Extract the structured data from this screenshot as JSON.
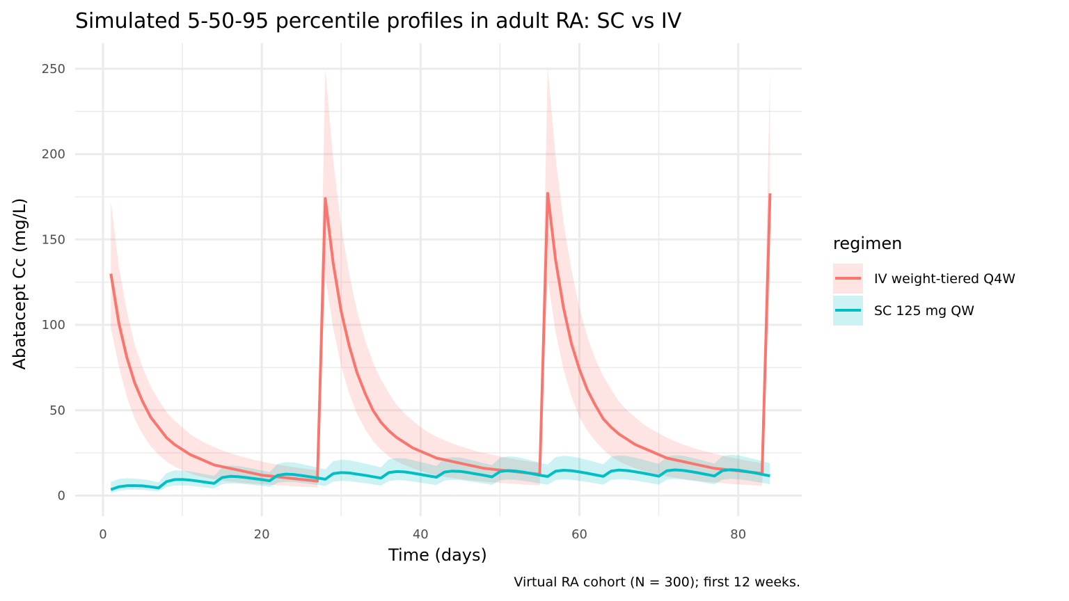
{
  "chart_data": {
    "type": "line",
    "title": "Simulated 5-50-95 percentile profiles in adult RA: SC vs IV",
    "xlabel": "Time (days)",
    "ylabel": "Abatacept Cc (mg/L)",
    "caption": "Virtual RA cohort (N = 300); first 12 weeks.",
    "xlim": [
      -3.5,
      88
    ],
    "ylim": [
      -12,
      265
    ],
    "x_ticks": [
      0,
      20,
      40,
      60,
      80
    ],
    "x_tick_labels": [
      "0",
      "20",
      "40",
      "60",
      "80"
    ],
    "y_ticks": [
      0,
      50,
      100,
      150,
      200,
      250
    ],
    "y_tick_labels": [
      "0",
      "50",
      "100",
      "150",
      "200",
      "250"
    ],
    "grid": true,
    "legend": {
      "title": "regimen",
      "position": "right",
      "entries": [
        "IV weight-tiered Q4W",
        "SC 125 mg QW"
      ]
    },
    "series": [
      {
        "name": "IV weight-tiered Q4W",
        "color": "#F8766D",
        "ribbon_color": "#F8766D",
        "x": [
          1,
          2,
          3,
          4,
          5,
          6,
          7,
          8,
          9,
          10,
          11,
          12,
          13,
          14,
          15,
          16,
          17,
          18,
          19,
          20,
          21,
          22,
          23,
          24,
          25,
          26,
          27,
          28,
          29,
          30,
          31,
          32,
          33,
          34,
          35,
          36,
          37,
          38,
          39,
          40,
          41,
          42,
          43,
          44,
          45,
          46,
          47,
          48,
          49,
          50,
          51,
          52,
          53,
          54,
          55,
          56,
          57,
          58,
          59,
          60,
          61,
          62,
          63,
          64,
          65,
          66,
          67,
          68,
          69,
          70,
          71,
          72,
          73,
          74,
          75,
          76,
          77,
          78,
          79,
          80,
          81,
          82,
          83,
          84
        ],
        "median": [
          130,
          101,
          81,
          66,
          55,
          46,
          40,
          34,
          30,
          27,
          24,
          22,
          20,
          18,
          17,
          16,
          15,
          14,
          13,
          12,
          11.5,
          11,
          10.5,
          10,
          9.5,
          9,
          8.5,
          174,
          136,
          108,
          88,
          72,
          60,
          50,
          43,
          38,
          34,
          31,
          28,
          26,
          24,
          22,
          21,
          20,
          19,
          18,
          17,
          16,
          15.5,
          15,
          14.5,
          14,
          13.5,
          13,
          12.5,
          177,
          138,
          110,
          89,
          74,
          62,
          53,
          45,
          40,
          36,
          33,
          30,
          28,
          26,
          24,
          22,
          21,
          20,
          19,
          18,
          17,
          16,
          15.5,
          15,
          14.5,
          14,
          13.5,
          13,
          177
        ],
        "p5": [
          98,
          76,
          58,
          45,
          36,
          29,
          24,
          20,
          17,
          15,
          13,
          11.5,
          10.5,
          9.5,
          8.8,
          8.2,
          7.7,
          7.3,
          7,
          6.7,
          6.4,
          6.1,
          5.8,
          5.5,
          5.2,
          5,
          4.8,
          128,
          98,
          76,
          60,
          48,
          39,
          32,
          27,
          23,
          20,
          18,
          16,
          14.5,
          13,
          12,
          11,
          10.3,
          9.7,
          9.1,
          8.6,
          8.2,
          7.8,
          7.4,
          7.1,
          6.8,
          6.5,
          6.2,
          6,
          127,
          96,
          74,
          58,
          46,
          38,
          32,
          27,
          23,
          20,
          18,
          16,
          14.5,
          13.2,
          12.2,
          11.3,
          10.5,
          9.8,
          9.2,
          8.6,
          8.1,
          7.7,
          7.3,
          6.9,
          6.6,
          6.3,
          6,
          5.7,
          127
        ],
        "p95": [
          172,
          134,
          108,
          88,
          75,
          64,
          56,
          49,
          44,
          40,
          36,
          33,
          30.5,
          28.5,
          26.5,
          25,
          23.5,
          22.2,
          21,
          20,
          19,
          18.2,
          17.4,
          16.7,
          16,
          15.4,
          14.8,
          250,
          196,
          158,
          130,
          108,
          91,
          78,
          68,
          60,
          53,
          48,
          44,
          40,
          37,
          34.5,
          32.5,
          30.5,
          29,
          27.5,
          26,
          25,
          24,
          23,
          22,
          21.2,
          20.5,
          19.8,
          19.2,
          251,
          198,
          160,
          132,
          110,
          93,
          80,
          70,
          62,
          55,
          50,
          46,
          42,
          39,
          36.5,
          34,
          32,
          30,
          28.5,
          27,
          25.8,
          24.6,
          23.5,
          22.5,
          21.5,
          20.6,
          19.8,
          19,
          250
        ]
      },
      {
        "name": "SC 125 mg QW",
        "color": "#00BFC4",
        "ribbon_color": "#00BFC4",
        "x": [
          1,
          2,
          3,
          4,
          5,
          6,
          7,
          8,
          9,
          10,
          11,
          12,
          13,
          14,
          15,
          16,
          17,
          18,
          19,
          20,
          21,
          22,
          23,
          24,
          25,
          26,
          27,
          28,
          29,
          30,
          31,
          32,
          33,
          34,
          35,
          36,
          37,
          38,
          39,
          40,
          41,
          42,
          43,
          44,
          45,
          46,
          47,
          48,
          49,
          50,
          51,
          52,
          53,
          54,
          55,
          56,
          57,
          58,
          59,
          60,
          61,
          62,
          63,
          64,
          65,
          66,
          67,
          68,
          69,
          70,
          71,
          72,
          73,
          74,
          75,
          76,
          77,
          78,
          79,
          80,
          81,
          82,
          83,
          84
        ],
        "median": [
          3.5,
          5.2,
          5.8,
          5.9,
          5.7,
          5.2,
          4.5,
          8.2,
          9.4,
          9.5,
          9.1,
          8.5,
          7.8,
          7.2,
          10.6,
          11.3,
          11.1,
          10.6,
          10,
          9.4,
          8.7,
          11.9,
          12.6,
          12.4,
          11.8,
          11.1,
          10.4,
          9.6,
          12.9,
          13.5,
          13.3,
          12.6,
          11.9,
          11.1,
          10.3,
          13.5,
          14.1,
          13.9,
          13.2,
          12.4,
          11.6,
          10.8,
          13.8,
          14.4,
          14.2,
          13.5,
          12.7,
          11.9,
          11.0,
          14.1,
          14.7,
          14.4,
          13.7,
          12.9,
          12.0,
          11.2,
          14.3,
          14.9,
          14.6,
          13.9,
          13.1,
          12.2,
          11.3,
          14.4,
          15.0,
          14.7,
          14.0,
          13.2,
          12.3,
          11.4,
          14.5,
          15.1,
          14.8,
          14.1,
          13.3,
          12.4,
          11.5,
          14.6,
          15.2,
          14.9,
          14.2,
          13.4,
          12.5,
          11.6
        ],
        "p5": [
          1.5,
          2.9,
          3.4,
          3.5,
          3.4,
          3,
          2.5,
          5,
          5.9,
          6,
          5.7,
          5.2,
          4.7,
          4.2,
          6.7,
          7.2,
          7.1,
          6.7,
          6.2,
          5.7,
          5.1,
          7.6,
          8.1,
          8,
          7.5,
          6.9,
          6.3,
          5.6,
          8.2,
          8.7,
          8.5,
          7.9,
          7.3,
          6.6,
          5.9,
          8.6,
          9.1,
          8.9,
          8.3,
          7.6,
          6.9,
          6.2,
          8.8,
          9.3,
          9.1,
          8.5,
          7.8,
          7.1,
          6.3,
          9,
          9.5,
          9.2,
          8.6,
          7.9,
          7.1,
          6.4,
          9.1,
          9.6,
          9.3,
          8.7,
          8,
          7.2,
          6.4,
          9.2,
          9.7,
          9.4,
          8.8,
          8.1,
          7.3,
          6.5,
          9.3,
          9.8,
          9.5,
          8.9,
          8.2,
          7.4,
          6.6,
          9.4,
          9.9,
          9.6,
          9,
          8.3,
          7.5,
          6.7
        ],
        "p95": [
          8,
          9.8,
          10.2,
          10,
          9.6,
          8.8,
          7.8,
          13.2,
          14.8,
          14.8,
          14.2,
          13.3,
          12.4,
          11.6,
          16.6,
          17.6,
          17.3,
          16.6,
          15.7,
          14.8,
          13.8,
          18.6,
          19.6,
          19.4,
          18.5,
          17.5,
          16.5,
          15.4,
          20.2,
          21,
          20.8,
          19.8,
          18.8,
          17.7,
          16.6,
          21.2,
          22,
          21.8,
          20.8,
          19.7,
          18.6,
          17.4,
          21.8,
          22.6,
          22.3,
          21.3,
          20.2,
          19,
          17.8,
          22.2,
          23,
          22.7,
          21.7,
          20.6,
          19.4,
          18.2,
          22.5,
          23.3,
          23,
          22,
          20.9,
          19.7,
          18.4,
          22.7,
          23.5,
          23.2,
          22.2,
          21.1,
          19.9,
          18.6,
          22.9,
          23.7,
          23.4,
          22.4,
          21.3,
          20.1,
          18.8,
          23.1,
          23.9,
          23.6,
          22.6,
          21.5,
          20.3,
          19
        ]
      }
    ]
  }
}
